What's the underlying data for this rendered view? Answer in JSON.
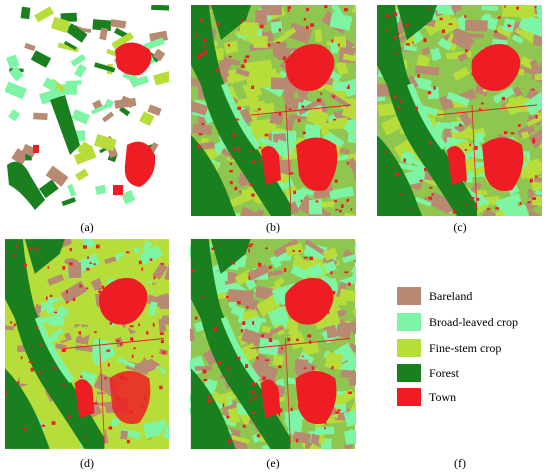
{
  "colors": {
    "bareland": "#b98a72",
    "broad": "#7ef5a4",
    "fine": "#b7dd3a",
    "forest": "#1a7f1f",
    "town": "#ee1d24"
  },
  "captions": [
    "(a)",
    "(b)",
    "(c)",
    "(d)",
    "(e)",
    "(f)"
  ],
  "legend": [
    {
      "label": "Bareland",
      "color": "#b98a72"
    },
    {
      "label": "Broad-leaved crop",
      "color": "#7ef5a4"
    },
    {
      "label": "Fine-stem crop",
      "color": "#b7dd3a"
    },
    {
      "label": "Forest",
      "color": "#1a7f1f"
    },
    {
      "label": "Town",
      "color": "#ee1d24"
    }
  ]
}
